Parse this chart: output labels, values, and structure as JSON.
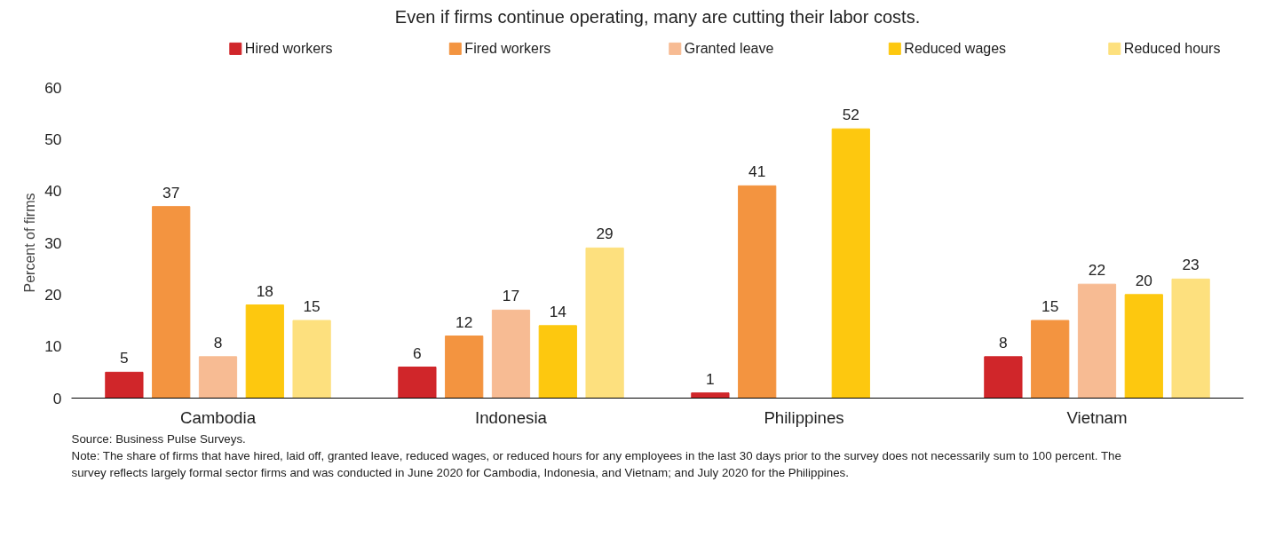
{
  "chart_data": {
    "type": "bar",
    "title": "Even if firms continue operating, many are cutting their labor costs.",
    "ylabel": "Percent of firms",
    "categories": [
      "Cambodia",
      "Indonesia",
      "Philippines",
      "Vietnam"
    ],
    "series": [
      {
        "name": "Hired workers",
        "color": "#d0262a",
        "values": [
          5,
          6,
          1,
          8
        ]
      },
      {
        "name": "Fired workers",
        "color": "#f39440",
        "values": [
          37,
          12,
          41,
          15
        ]
      },
      {
        "name": "Granted leave",
        "color": "#f7bb93",
        "values": [
          8,
          17,
          null,
          22
        ]
      },
      {
        "name": "Reduced wages",
        "color": "#fdc80f",
        "values": [
          18,
          14,
          52,
          20
        ]
      },
      {
        "name": "Reduced hours",
        "color": "#fde07e",
        "values": [
          15,
          29,
          null,
          23
        ]
      }
    ],
    "ylim": [
      0,
      60
    ],
    "yticks": [
      0,
      10,
      20,
      30,
      40,
      50,
      60
    ],
    "grid": false,
    "legend": "top",
    "data_labels": true,
    "annotations": [
      "Source: Business Pulse Surveys.",
      "Note: The share of firms that have hired, laid off, granted leave, reduced wages, or reduced hours for any employees in the last 30 days prior to the survey does not necessarily sum to 100 percent. The survey reflects largely formal sector firms and was conducted in June 2020 for Cambodia, Indonesia, and Vietnam; and July 2020 for the Philippines."
    ]
  }
}
